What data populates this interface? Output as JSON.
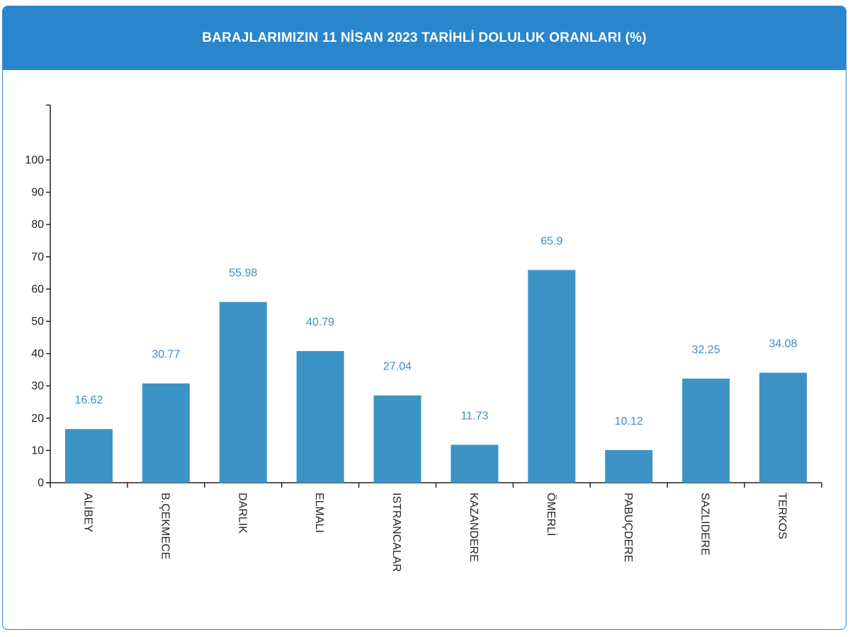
{
  "header": {
    "title": "BARAJLARIMIZIN 11 NİSAN 2023 TARİHLİ DOLULUK ORANLARI (%)"
  },
  "colors": {
    "header_bg": "#2a86cc",
    "bar": "#3d93c6",
    "value_label": "#3b8ec4",
    "axis": "#222222"
  },
  "chart_data": {
    "type": "bar",
    "title": "BARAJLARIMIZIN 11 NİSAN 2023 TARİHLİ DOLULUK ORANLARI (%)",
    "xlabel": "",
    "ylabel": "",
    "categories": [
      "ALİBEY",
      "B.ÇEKMECE",
      "DARLIK",
      "ELMALI",
      "ISTRANCALAR",
      "KAZANDERE",
      "ÖMERLİ",
      "PABUÇDERE",
      "SAZLIDERE",
      "TERKOS"
    ],
    "values": [
      16.62,
      30.77,
      55.98,
      40.79,
      27.04,
      11.73,
      65.9,
      10.12,
      32.25,
      34.08
    ],
    "value_labels": [
      "16.62",
      "30.77",
      "55.98",
      "40.79",
      "27.04",
      "11.73",
      "65.9",
      "10.12",
      "32.25",
      "34.08"
    ],
    "yticks": [
      0,
      10,
      20,
      30,
      40,
      50,
      60,
      70,
      80,
      90,
      100
    ],
    "ylim": [
      0,
      117
    ],
    "grid": false,
    "category_label_orientation": "vertical"
  }
}
